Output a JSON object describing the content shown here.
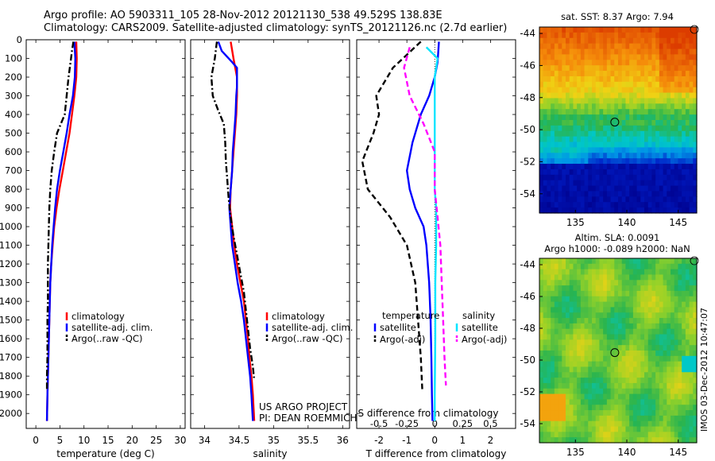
{
  "header": {
    "line1": "Argo profile: AO 5903311_105 28-Nov-2012 20121130_538 49.529S 138.83E",
    "line2": "Climatology: CARS2009. Satellite-adjusted climatology: synTS_20121126.nc (2.7d earlier)"
  },
  "colors": {
    "climatology": "#ff0000",
    "satellite": "#0000ff",
    "argo": "#000000",
    "salinity_satellite": "#00e5ff",
    "salinity_argo": "#ff00ff"
  },
  "chart_data": [
    {
      "type": "line",
      "id": "temperature",
      "xlabel": "temperature (deg C)",
      "ylabel": "",
      "xlim": [
        -2,
        31
      ],
      "ylim": [
        2080,
        0
      ],
      "xticks": [
        "0",
        "5",
        "10",
        "15",
        "20",
        "25",
        "30"
      ],
      "yticks": [
        "0",
        "100",
        "200",
        "300",
        "400",
        "500",
        "600",
        "700",
        "800",
        "900",
        "1000",
        "1100",
        "1200",
        "1300",
        "1400",
        "1500",
        "1600",
        "1700",
        "1800",
        "1900",
        "2000"
      ],
      "legend": {
        "placement": "lower-middle",
        "entries": [
          "climatology",
          "satellite-adj. clim.",
          "Argo(..raw -QC)"
        ]
      },
      "series": [
        {
          "name": "climatology",
          "color": "#ff0000",
          "style": "solid",
          "points": [
            [
              8.4,
              10
            ],
            [
              8.5,
              100
            ],
            [
              8.4,
              200
            ],
            [
              8.0,
              300
            ],
            [
              7.5,
              400
            ],
            [
              7.0,
              500
            ],
            [
              6.3,
              600
            ],
            [
              5.6,
              700
            ],
            [
              4.9,
              800
            ],
            [
              4.3,
              900
            ],
            [
              3.8,
              1000
            ],
            [
              3.5,
              1100
            ],
            [
              3.2,
              1200
            ],
            [
              3.0,
              1300
            ],
            [
              2.9,
              1400
            ],
            [
              2.8,
              1500
            ],
            [
              2.7,
              1600
            ],
            [
              2.6,
              1700
            ],
            [
              2.5,
              1800
            ],
            [
              2.4,
              1900
            ],
            [
              2.3,
              2040
            ]
          ]
        },
        {
          "name": "satellite-adj. clim.",
          "color": "#0000ff",
          "style": "solid",
          "points": [
            [
              8.0,
              10
            ],
            [
              8.2,
              100
            ],
            [
              8.1,
              200
            ],
            [
              7.7,
              300
            ],
            [
              7.0,
              400
            ],
            [
              6.4,
              500
            ],
            [
              5.7,
              600
            ],
            [
              5.0,
              700
            ],
            [
              4.4,
              800
            ],
            [
              4.0,
              900
            ],
            [
              3.7,
              1000
            ],
            [
              3.4,
              1100
            ],
            [
              3.2,
              1200
            ],
            [
              3.0,
              1300
            ],
            [
              2.9,
              1400
            ],
            [
              2.8,
              1500
            ],
            [
              2.7,
              1600
            ],
            [
              2.6,
              1700
            ],
            [
              2.5,
              1800
            ],
            [
              2.4,
              1900
            ],
            [
              2.3,
              2040
            ]
          ]
        },
        {
          "name": "Argo(..raw -QC)",
          "color": "#000000",
          "style": "dashdot",
          "points": [
            [
              7.8,
              10
            ],
            [
              7.5,
              60
            ],
            [
              7.2,
              120
            ],
            [
              6.8,
              200
            ],
            [
              6.4,
              300
            ],
            [
              6.0,
              400
            ],
            [
              4.4,
              500
            ],
            [
              3.8,
              600
            ],
            [
              3.3,
              700
            ],
            [
              3.0,
              800
            ],
            [
              2.8,
              900
            ],
            [
              2.7,
              1000
            ],
            [
              2.6,
              1100
            ],
            [
              2.5,
              1200
            ],
            [
              2.5,
              1300
            ],
            [
              2.5,
              1400
            ],
            [
              2.4,
              1500
            ],
            [
              2.4,
              1600
            ],
            [
              2.4,
              1700
            ],
            [
              2.3,
              1800
            ],
            [
              2.3,
              1870
            ]
          ]
        }
      ]
    },
    {
      "type": "line",
      "id": "salinity",
      "xlabel": "salinity",
      "ylabel": "",
      "xlim": [
        33.8,
        36.1
      ],
      "ylim": [
        2080,
        0
      ],
      "xticks": [
        "34",
        "34.5",
        "35",
        "35.5",
        "36"
      ],
      "legend": {
        "placement": "lower-right",
        "entries": [
          "climatology",
          "satellite-adj. clim.",
          "Argo(..raw -QC)"
        ]
      },
      "annotation": [
        "US ARGO PROJECT",
        "PI: DEAN ROEMMICH"
      ],
      "series": [
        {
          "name": "climatology",
          "color": "#ff0000",
          "style": "solid",
          "points": [
            [
              34.38,
              10
            ],
            [
              34.42,
              100
            ],
            [
              34.47,
              200
            ],
            [
              34.47,
              300
            ],
            [
              34.46,
              400
            ],
            [
              34.44,
              500
            ],
            [
              34.42,
              600
            ],
            [
              34.4,
              700
            ],
            [
              34.38,
              800
            ],
            [
              34.37,
              900
            ],
            [
              34.4,
              1000
            ],
            [
              34.43,
              1100
            ],
            [
              34.47,
              1200
            ],
            [
              34.52,
              1300
            ],
            [
              34.57,
              1400
            ],
            [
              34.6,
              1500
            ],
            [
              34.63,
              1600
            ],
            [
              34.65,
              1700
            ],
            [
              34.68,
              1800
            ],
            [
              34.7,
              1900
            ],
            [
              34.72,
              2040
            ]
          ]
        },
        {
          "name": "satellite-adj. clim.",
          "color": "#0000ff",
          "style": "solid",
          "points": [
            [
              34.2,
              10
            ],
            [
              34.25,
              60
            ],
            [
              34.4,
              120
            ],
            [
              34.47,
              150
            ],
            [
              34.47,
              250
            ],
            [
              34.46,
              300
            ],
            [
              34.45,
              400
            ],
            [
              34.43,
              500
            ],
            [
              34.41,
              600
            ],
            [
              34.4,
              700
            ],
            [
              34.38,
              800
            ],
            [
              34.36,
              900
            ],
            [
              34.38,
              1000
            ],
            [
              34.4,
              1100
            ],
            [
              34.44,
              1200
            ],
            [
              34.48,
              1300
            ],
            [
              34.53,
              1400
            ],
            [
              34.57,
              1500
            ],
            [
              34.6,
              1600
            ],
            [
              34.63,
              1700
            ],
            [
              34.66,
              1800
            ],
            [
              34.68,
              1900
            ],
            [
              34.7,
              2040
            ]
          ]
        },
        {
          "name": "Argo(..raw -QC)",
          "color": "#000000",
          "style": "dashdot",
          "points": [
            [
              34.18,
              10
            ],
            [
              34.15,
              100
            ],
            [
              34.1,
              200
            ],
            [
              34.12,
              300
            ],
            [
              34.2,
              380
            ],
            [
              34.28,
              450
            ],
            [
              34.3,
              550
            ],
            [
              34.31,
              650
            ],
            [
              34.33,
              750
            ],
            [
              34.35,
              850
            ],
            [
              34.38,
              950
            ],
            [
              34.42,
              1050
            ],
            [
              34.47,
              1150
            ],
            [
              34.52,
              1250
            ],
            [
              34.57,
              1350
            ],
            [
              34.6,
              1450
            ],
            [
              34.63,
              1550
            ],
            [
              34.66,
              1650
            ],
            [
              34.7,
              1750
            ],
            [
              34.72,
              1820
            ]
          ]
        }
      ]
    },
    {
      "type": "line",
      "id": "differences",
      "xlabel": "T difference from climatology",
      "xlabel_top": "S difference from climatology",
      "xlim": [
        -2.8,
        2.9
      ],
      "ylim": [
        2080,
        0
      ],
      "xticks": [
        "-2",
        "-1",
        "0",
        "1",
        "2"
      ],
      "xticks_top": [
        "-0.5",
        "-0.25",
        "0",
        "0.25",
        "0.5"
      ],
      "legend": {
        "placement": "lower",
        "temperature_title": "temperature",
        "salinity_title": "salinity",
        "entries": [
          "satellite",
          "Argo(-adj)",
          "satellite",
          "Argo(-adj)"
        ]
      },
      "series": [
        {
          "name": "satellite",
          "color": "#0000ff",
          "style": "solid",
          "points": [
            [
              0.15,
              10
            ],
            [
              0.1,
              120
            ],
            [
              0.0,
              200
            ],
            [
              -0.2,
              300
            ],
            [
              -0.5,
              400
            ],
            [
              -0.8,
              550
            ],
            [
              -1.0,
              700
            ],
            [
              -0.9,
              800
            ],
            [
              -0.7,
              900
            ],
            [
              -0.4,
              1000
            ],
            [
              -0.3,
              1100
            ],
            [
              -0.2,
              1300
            ],
            [
              -0.15,
              1500
            ],
            [
              -0.12,
              1700
            ],
            [
              -0.1,
              1900
            ],
            [
              -0.08,
              2040
            ]
          ]
        },
        {
          "name": "Argo(-adj)",
          "color": "#000000",
          "style": "dashed",
          "points": [
            [
              -0.5,
              10
            ],
            [
              -1.5,
              150
            ],
            [
              -2.1,
              300
            ],
            [
              -2.0,
              400
            ],
            [
              -2.2,
              500
            ],
            [
              -2.6,
              650
            ],
            [
              -2.4,
              800
            ],
            [
              -1.6,
              950
            ],
            [
              -1.0,
              1100
            ],
            [
              -0.7,
              1300
            ],
            [
              -0.6,
              1500
            ],
            [
              -0.5,
              1700
            ],
            [
              -0.45,
              1870
            ]
          ]
        },
        {
          "name": "satellite",
          "color": "#00e5ff",
          "style": "solid",
          "points": [
            [
              -0.3,
              40
            ],
            [
              0.1,
              100
            ],
            [
              0.0,
              200
            ],
            [
              0.0,
              500
            ],
            [
              0.0,
              800
            ],
            [
              0.05,
              900
            ],
            [
              0.05,
              1100
            ],
            [
              0.02,
              1300
            ],
            [
              0.02,
              1600
            ],
            [
              0.0,
              1900
            ],
            [
              0.0,
              2040
            ]
          ]
        },
        {
          "name": "Argo(-adj)",
          "color": "#ff00ff",
          "style": "dashed",
          "points": [
            [
              -0.9,
              40
            ],
            [
              -1.1,
              150
            ],
            [
              -0.9,
              300
            ],
            [
              -0.4,
              450
            ],
            [
              0.0,
              600
            ],
            [
              0.0,
              800
            ],
            [
              0.1,
              950
            ],
            [
              0.2,
              1100
            ],
            [
              0.25,
              1300
            ],
            [
              0.3,
              1500
            ],
            [
              0.35,
              1700
            ],
            [
              0.4,
              1850
            ]
          ]
        }
      ]
    },
    {
      "type": "heatmap",
      "id": "sst-map",
      "title": "sat. SST: 8.37 Argo: 7.94",
      "xlim": [
        131.5,
        146.8
      ],
      "ylim": [
        -55.2,
        -43.6
      ],
      "xticks": [
        "135",
        "140",
        "145"
      ],
      "yticks": [
        "-44",
        "-46",
        "-48",
        "-50",
        "-52",
        "-54"
      ],
      "marker": [
        138.83,
        -49.53
      ]
    },
    {
      "type": "heatmap",
      "id": "sla-map",
      "title_line1": "Altim. SLA: 0.0091",
      "title_line2": "Argo h1000: -0.089 h2000: NaN",
      "xlim": [
        131.5,
        146.8
      ],
      "ylim": [
        -55.2,
        -43.6
      ],
      "xticks": [
        "135",
        "140",
        "145"
      ],
      "yticks": [
        "-44",
        "-46",
        "-48",
        "-50",
        "-52",
        "-54"
      ],
      "marker": [
        138.83,
        -49.53
      ],
      "side_text": "IMOS 03-Dec-2012 10:47:07"
    }
  ]
}
